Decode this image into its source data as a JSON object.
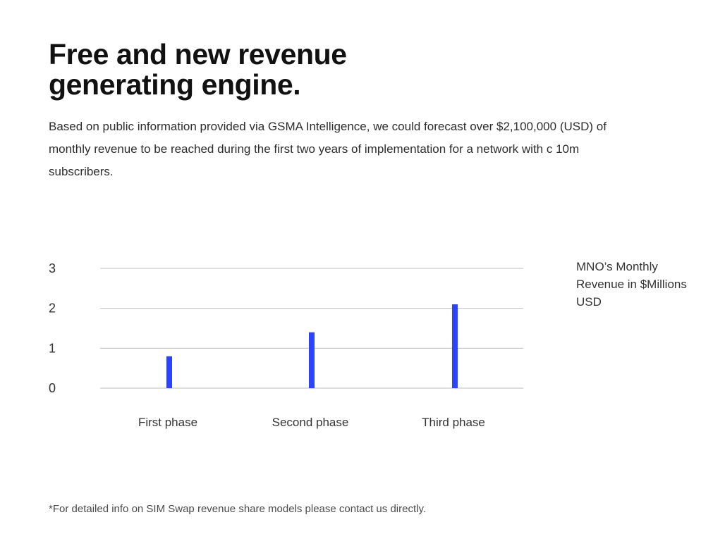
{
  "header": {
    "title": "Free and new revenue generating engine."
  },
  "intro": {
    "text": "Based on public information provided via GSMA Intelligence, we could forecast over $2,100,000 (USD) of monthly revenue to be reached during the first two years of implementation for a network with c 10m subscribers."
  },
  "chart_data": {
    "type": "bar",
    "categories": [
      "First phase",
      "Second phase",
      "Third phase"
    ],
    "values": [
      0.8,
      1.4,
      2.1
    ],
    "ylabel": "MNO’s Monthly Revenue in $Millions USD",
    "ylim": [
      0,
      3
    ],
    "yticks": [
      0,
      1,
      2,
      3
    ],
    "grid": true,
    "bar_color": "#2b45ff",
    "grid_color": "#bdbdbd",
    "label_color": "#333333"
  },
  "footer": {
    "note": "*For detailed info on SIM Swap revenue share models please contact us directly."
  }
}
